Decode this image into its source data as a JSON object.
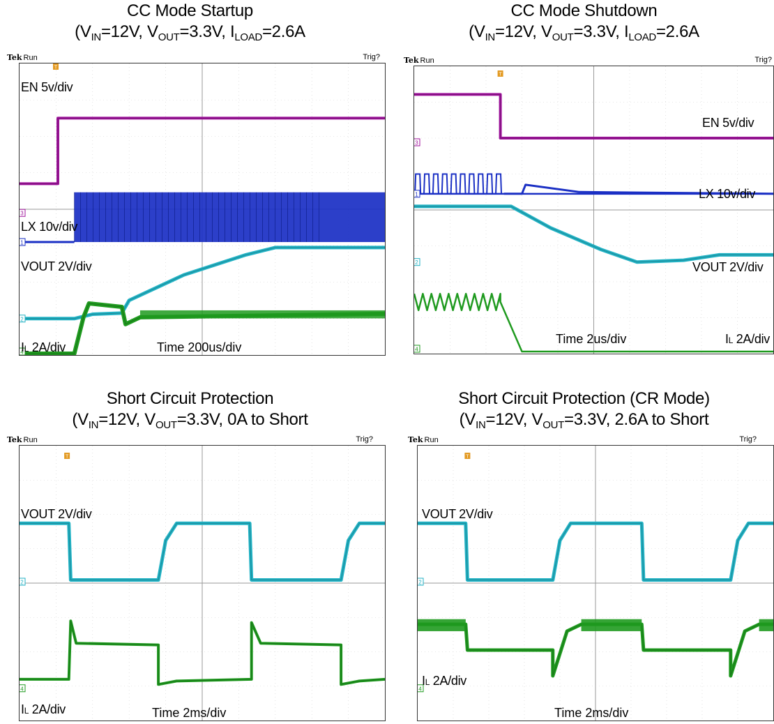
{
  "colors": {
    "en": "#a0159d",
    "lx": "#1a2fc4",
    "vout": "#22b2c4",
    "il": "#1f9a1f",
    "trigger": "#e39a22",
    "cursor": "#33cccc"
  },
  "panels": [
    {
      "title": "CC Mode Startup",
      "cond": {
        "vin_pre": "V",
        "vin_sub": "IN",
        "vin_post": "=12V, ",
        "vout_pre": "V",
        "vout_sub": "OUT",
        "vout_post": "=3.3V, ",
        "i_pre": "I",
        "i_sub": "LOAD",
        "i_post": "=2.6A"
      },
      "scope": {
        "brand": "Tek",
        "state": "Run",
        "trig": "Trig?"
      },
      "labels": {
        "en": "EN  5v/div",
        "lx": "LX  10v/div",
        "vout": "VOUT  2V/div",
        "il": "I",
        "il_sub": "L",
        "il_rest": " 2A/div",
        "time": "Time  200us/div"
      },
      "channels": [
        "3",
        "1",
        "2",
        "4"
      ]
    },
    {
      "title": "CC Mode Shutdown",
      "cond": {
        "vin_pre": "V",
        "vin_sub": "IN",
        "vin_post": "=12V, ",
        "vout_pre": "V",
        "vout_sub": "OUT",
        "vout_post": "=3.3V, ",
        "i_pre": "I",
        "i_sub": "LOAD",
        "i_post": "=2.6A"
      },
      "scope": {
        "brand": "Tek",
        "state": "Run",
        "trig": "Trig?"
      },
      "labels": {
        "en": "EN  5v/div",
        "lx": "LX  10v/div",
        "vout": "VOUT  2V/div",
        "il": "I",
        "il_sub": "L",
        "il_rest": " 2A/div",
        "time": "Time  2us/div"
      },
      "channels": [
        "3",
        "1",
        "2",
        "4"
      ]
    },
    {
      "title": "Short Circuit Protection",
      "cond": {
        "vin_pre": "V",
        "vin_sub": "IN",
        "vin_post": "=12V, ",
        "vout_pre": "V",
        "vout_sub": "OUT",
        "vout_post": "=3.3V, ",
        "i_pre": "",
        "i_sub": "",
        "i_post": "0A to Short"
      },
      "scope": {
        "brand": "Tek",
        "state": "Run",
        "trig": "Trig?"
      },
      "labels": {
        "vout": "VOUT  2V/div",
        "il": "I",
        "il_sub": "L",
        "il_rest": " 2A/div",
        "time": "Time  2ms/div"
      },
      "channels": [
        "2",
        "4"
      ]
    },
    {
      "title": "Short Circuit Protection (CR Mode)",
      "cond": {
        "vin_pre": "V",
        "vin_sub": "IN",
        "vin_post": "=12V, ",
        "vout_pre": "V",
        "vout_sub": "OUT",
        "vout_post": "=3.3V, ",
        "i_pre": "",
        "i_sub": "",
        "i_post": "2.6A to Short"
      },
      "scope": {
        "brand": "Tek",
        "state": "Run",
        "trig": "Trig?"
      },
      "labels": {
        "vout": "VOUT  2V/div",
        "il": "I",
        "il_sub": "L",
        "il_rest": " 2A/div",
        "time": "Time  2ms/div"
      },
      "channels": [
        "2",
        "4"
      ]
    }
  ],
  "chart_data": [
    {
      "type": "line",
      "title": "CC Mode Startup",
      "x_unit": "div",
      "xlim": [
        0,
        10
      ],
      "grid": true,
      "series": [
        {
          "name": "EN",
          "points": [
            [
              0,
              0.8
            ],
            [
              1.05,
              0.8
            ],
            [
              1.05,
              2.6
            ],
            [
              10,
              2.6
            ]
          ]
        },
        {
          "name": "LX",
          "switching": {
            "start": 1.5,
            "end": 10,
            "low": 0,
            "high": 1.3
          }
        },
        {
          "name": "VOUT",
          "points": [
            [
              0,
              0
            ],
            [
              1.5,
              0
            ],
            [
              2,
              0.12
            ],
            [
              2.8,
              0.15
            ],
            [
              3,
              0.5
            ],
            [
              4.5,
              1.2
            ],
            [
              6.2,
              1.75
            ],
            [
              7,
              1.95
            ],
            [
              10,
              1.95
            ]
          ]
        },
        {
          "name": "IL",
          "points": [
            [
              0,
              0
            ],
            [
              1.5,
              0
            ],
            [
              1.75,
              1.05
            ],
            [
              1.9,
              1.45
            ],
            [
              2.8,
              1.35
            ],
            [
              2.9,
              0.85
            ],
            [
              3.3,
              1.05
            ],
            [
              10,
              1.15
            ]
          ]
        }
      ]
    },
    {
      "type": "line",
      "title": "CC Mode Shutdown",
      "x_unit": "div",
      "xlim": [
        0,
        10
      ],
      "grid": true,
      "series": [
        {
          "name": "EN",
          "points": [
            [
              0,
              2.4
            ],
            [
              2.4,
              2.4
            ],
            [
              2.4,
              1.5
            ],
            [
              10,
              1.5
            ]
          ]
        },
        {
          "name": "LX",
          "pulses": [
            0.1,
            0.35,
            0.6,
            0.85,
            1.1,
            1.35,
            1.6,
            1.85,
            2.1,
            2.35
          ],
          "after": [
            [
              2.5,
              0
            ],
            [
              3,
              0
            ],
            [
              3.1,
              0.25
            ],
            [
              4.6,
              0.05
            ],
            [
              10,
              0
            ]
          ]
        },
        {
          "name": "VOUT",
          "points": [
            [
              0,
              1.3
            ],
            [
              2.7,
              1.3
            ],
            [
              3.8,
              0.7
            ],
            [
              5.2,
              0.1
            ],
            [
              6.2,
              -0.25
            ],
            [
              7.5,
              -0.2
            ],
            [
              8.5,
              -0.05
            ],
            [
              10,
              -0.05
            ]
          ]
        },
        {
          "name": "IL",
          "ripple": {
            "start": 0,
            "end": 2.4,
            "low": 1.0,
            "high": 1.4,
            "peaks": 10
          },
          "points": [
            [
              2.4,
              1.2
            ],
            [
              3,
              0
            ],
            [
              10,
              0
            ]
          ]
        }
      ]
    },
    {
      "type": "line",
      "title": "Short Circuit Protection",
      "x_unit": "div",
      "xlim": [
        0,
        10
      ],
      "grid": true,
      "series": [
        {
          "name": "VOUT",
          "points": [
            [
              0,
              1.7
            ],
            [
              1.35,
              1.7
            ],
            [
              1.4,
              0.05
            ],
            [
              3.8,
              0.05
            ],
            [
              4.0,
              1.2
            ],
            [
              4.3,
              1.7
            ],
            [
              6.3,
              1.7
            ],
            [
              6.35,
              0.05
            ],
            [
              8.8,
              0.05
            ],
            [
              9.0,
              1.2
            ],
            [
              9.3,
              1.7
            ],
            [
              10,
              1.7
            ]
          ]
        },
        {
          "name": "IL",
          "points": [
            [
              0,
              0.2
            ],
            [
              1.35,
              0.2
            ],
            [
              1.4,
              1.9
            ],
            [
              1.55,
              1.25
            ],
            [
              3.8,
              1.2
            ],
            [
              3.8,
              0.05
            ],
            [
              4.3,
              0.15
            ],
            [
              6.35,
              0.2
            ],
            [
              6.35,
              1.85
            ],
            [
              6.6,
              1.25
            ],
            [
              8.8,
              1.2
            ],
            [
              8.8,
              0.05
            ],
            [
              9.3,
              0.15
            ],
            [
              10,
              0.2
            ]
          ]
        }
      ]
    },
    {
      "type": "line",
      "title": "Short Circuit Protection (CR Mode)",
      "x_unit": "div",
      "xlim": [
        0,
        10
      ],
      "grid": true,
      "series": [
        {
          "name": "VOUT",
          "points": [
            [
              0,
              1.7
            ],
            [
              1.35,
              1.7
            ],
            [
              1.4,
              0.05
            ],
            [
              3.8,
              0.05
            ],
            [
              4.0,
              1.2
            ],
            [
              4.3,
              1.7
            ],
            [
              6.3,
              1.7
            ],
            [
              6.35,
              0.05
            ],
            [
              8.8,
              0.05
            ],
            [
              9.0,
              1.2
            ],
            [
              9.3,
              1.7
            ],
            [
              10,
              1.7
            ]
          ]
        },
        {
          "name": "IL",
          "points": [
            [
              0,
              1.8
            ],
            [
              1.35,
              1.8
            ],
            [
              1.4,
              1.05
            ],
            [
              3.8,
              1.05
            ],
            [
              3.8,
              0.3
            ],
            [
              4.2,
              1.6
            ],
            [
              4.6,
              1.8
            ],
            [
              6.3,
              1.8
            ],
            [
              6.35,
              1.05
            ],
            [
              8.8,
              1.05
            ],
            [
              8.8,
              0.3
            ],
            [
              9.2,
              1.6
            ],
            [
              9.6,
              1.8
            ],
            [
              10,
              1.8
            ]
          ]
        }
      ]
    }
  ]
}
